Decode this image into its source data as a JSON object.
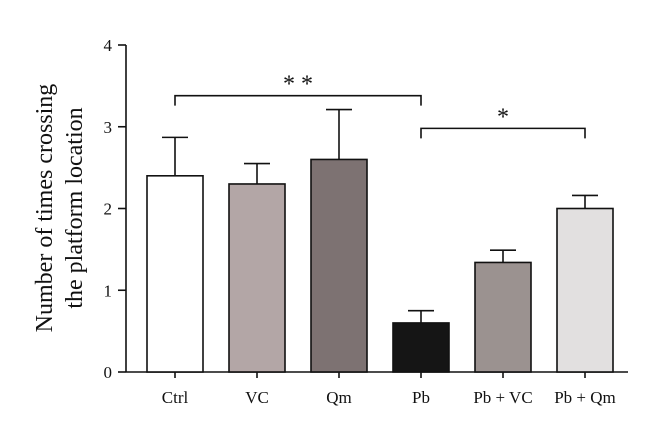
{
  "chart_data": {
    "type": "bar",
    "ylabel_lines": [
      "Number of times crossing",
      "the platform location"
    ],
    "ylim": [
      0,
      4
    ],
    "yticks": [
      "0",
      "1",
      "2",
      "3",
      "4"
    ],
    "categories": [
      "Ctrl",
      "VC",
      "Qm",
      "Pb",
      "Pb + VC",
      "Pb + Qm"
    ],
    "values": [
      2.4,
      2.3,
      2.6,
      0.6,
      1.34,
      2.0
    ],
    "errors": [
      0.47,
      0.25,
      0.61,
      0.15,
      0.15,
      0.16
    ],
    "bar_colors": [
      "#ffffff",
      "#b3a6a6",
      "#7d7272",
      "#151515",
      "#9b9290",
      "#e2e0e0"
    ],
    "significance": [
      {
        "from": "Ctrl",
        "to": "Pb",
        "label": "* *",
        "level": 3.38
      },
      {
        "from": "Pb",
        "to": "Pb + Qm",
        "label": "*",
        "level": 2.98
      }
    ],
    "grid": false,
    "legend": "none"
  }
}
